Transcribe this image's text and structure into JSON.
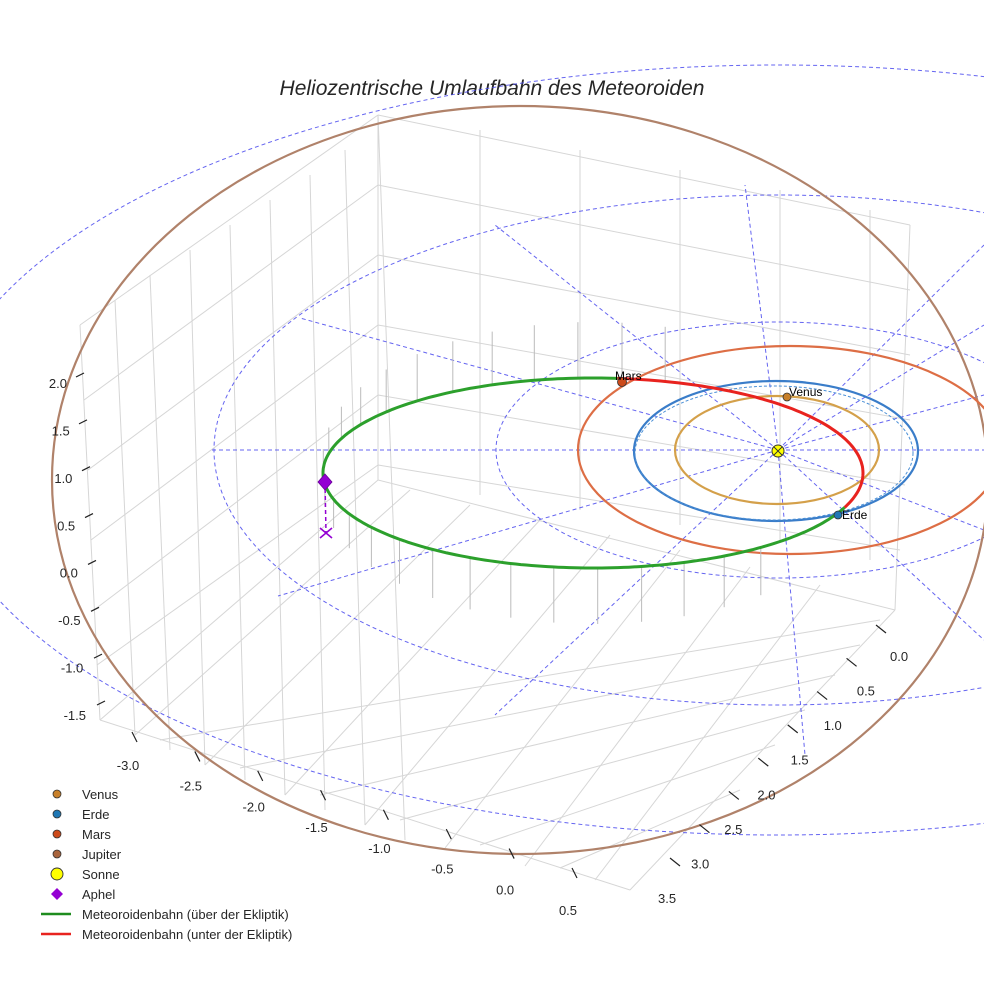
{
  "chart_data": {
    "type": "3d-line",
    "title": "Heliozentrische Umlaufbahn des Meteoroiden",
    "axes": {
      "x": {
        "ticks": [
          "-3.0",
          "-2.5",
          "-2.0",
          "-1.5",
          "-1.0",
          "-0.5",
          "0.0",
          "0.5"
        ],
        "range": [
          -3.3,
          0.7
        ]
      },
      "y": {
        "ticks": [
          "0.0",
          "0.5",
          "1.0",
          "1.5",
          "2.0",
          "2.5",
          "3.0",
          "3.5"
        ],
        "range": [
          -0.2,
          3.7
        ]
      },
      "z": {
        "ticks": [
          "2.0",
          "1.5",
          "1.0",
          "0.5",
          "0.0",
          "-0.5",
          "-1.0",
          "-1.5"
        ],
        "range": [
          -1.7,
          2.2
        ]
      }
    },
    "series": [
      {
        "name": "Venus",
        "kind": "orbit",
        "semi_major_axis_au": 0.72,
        "color": "#d4a04a"
      },
      {
        "name": "Erde",
        "kind": "orbit",
        "semi_major_axis_au": 1.0,
        "color": "#3a7dc9"
      },
      {
        "name": "Mars",
        "kind": "orbit",
        "semi_major_axis_au": 1.52,
        "color": "#dd6e45"
      },
      {
        "name": "Jupiter",
        "kind": "orbit",
        "semi_major_axis_au": 5.2,
        "color": "#b0826a"
      },
      {
        "name": "Meteoroidenbahn (über der Ekliptik)",
        "kind": "trajectory",
        "color": "#2ca02c"
      },
      {
        "name": "Meteoroidenbahn (unter der Ekliptik)",
        "kind": "trajectory",
        "color": "#e8231f"
      }
    ],
    "points": [
      {
        "name": "Venus",
        "label": "Venus"
      },
      {
        "name": "Erde",
        "label": "Erde"
      },
      {
        "name": "Mars",
        "label": "Mars"
      },
      {
        "name": "Sonne",
        "label": ""
      },
      {
        "name": "Aphel",
        "label": ""
      }
    ],
    "legend": {
      "placement": "bottom-left",
      "entries": [
        {
          "label": "Venus",
          "marker": "circle",
          "color": "#c8802a"
        },
        {
          "label": "Erde",
          "marker": "circle",
          "color": "#1f77b4"
        },
        {
          "label": "Mars",
          "marker": "circle",
          "color": "#cc4a1a"
        },
        {
          "label": "Jupiter",
          "marker": "circle",
          "color": "#a8643c"
        },
        {
          "label": "Sonne",
          "marker": "big-circle",
          "color": "#ffff00"
        },
        {
          "label": "Aphel",
          "marker": "diamond",
          "color": "#9400d3"
        },
        {
          "label": "Meteoroidenbahn (über der Ekliptik)",
          "marker": "line",
          "color": "#1e8c1e"
        },
        {
          "label": "Meteoroidenbahn (unter der Ekliptik)",
          "marker": "line",
          "color": "#e8231f"
        }
      ]
    }
  }
}
